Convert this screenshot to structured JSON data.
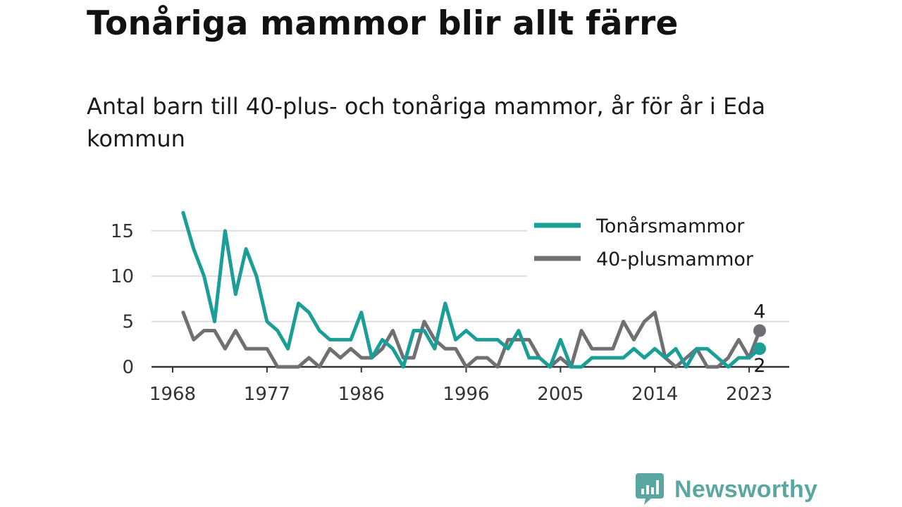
{
  "header": {
    "title": "Tonåriga mammor blir allt färre",
    "subtitle": "Antal barn till 40-plus- och tonåriga mammor, år för år i Eda kommun"
  },
  "brand": {
    "name": "Newsworthy",
    "icon": "newsworthy-logo-icon",
    "color": "#5aa7a1"
  },
  "chart_data": {
    "type": "line",
    "title": "Tonåriga mammor blir allt färre",
    "xlabel": "",
    "ylabel": "",
    "xlim": [
      1968,
      2024
    ],
    "ylim": [
      0,
      17
    ],
    "x_ticks": [
      "1968",
      "1977",
      "1986",
      "1996",
      "2005",
      "2014",
      "2023"
    ],
    "y_ticks": [
      "0",
      "5",
      "10",
      "15"
    ],
    "grid": "horizontal",
    "legend_position": "top-right",
    "x": [
      1969,
      1970,
      1971,
      1972,
      1973,
      1974,
      1975,
      1976,
      1977,
      1978,
      1979,
      1980,
      1981,
      1982,
      1983,
      1984,
      1985,
      1986,
      1987,
      1988,
      1989,
      1990,
      1991,
      1992,
      1993,
      1994,
      1995,
      1996,
      1997,
      1998,
      1999,
      2000,
      2001,
      2002,
      2003,
      2004,
      2005,
      2006,
      2007,
      2008,
      2009,
      2010,
      2011,
      2012,
      2013,
      2014,
      2015,
      2016,
      2017,
      2018,
      2019,
      2020,
      2021,
      2022,
      2023,
      2024
    ],
    "series": [
      {
        "name": "Tonårsmammor",
        "color": "#1a9e96",
        "values": [
          17,
          13,
          10,
          5,
          15,
          8,
          13,
          10,
          5,
          4,
          2,
          7,
          6,
          4,
          3,
          3,
          3,
          6,
          1,
          3,
          2,
          0,
          4,
          4,
          2,
          7,
          3,
          4,
          3,
          3,
          3,
          2,
          4,
          1,
          1,
          0,
          3,
          0,
          0,
          1,
          1,
          1,
          1,
          2,
          1,
          2,
          1,
          2,
          0,
          2,
          2,
          1,
          0,
          1,
          1,
          2
        ],
        "end_label": "2"
      },
      {
        "name": "40-plusmammor",
        "color": "#6f6f74",
        "values": [
          6,
          3,
          4,
          4,
          2,
          4,
          2,
          2,
          2,
          0,
          0,
          0,
          1,
          0,
          2,
          1,
          2,
          1,
          1,
          2,
          4,
          1,
          1,
          5,
          3,
          2,
          2,
          0,
          1,
          1,
          0,
          3,
          3,
          3,
          1,
          0,
          1,
          0,
          4,
          2,
          2,
          2,
          5,
          3,
          5,
          6,
          1,
          0,
          1,
          2,
          0,
          0,
          1,
          3,
          1,
          4
        ],
        "end_label": "4"
      }
    ]
  }
}
